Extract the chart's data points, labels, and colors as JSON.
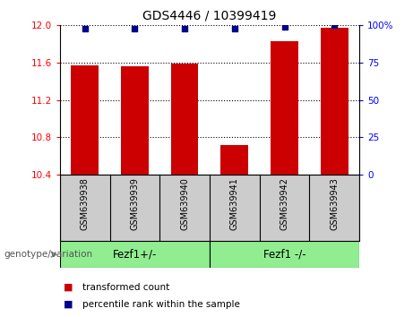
{
  "title": "GDS4446 / 10399419",
  "samples": [
    "GSM639938",
    "GSM639939",
    "GSM639940",
    "GSM639941",
    "GSM639942",
    "GSM639943"
  ],
  "red_values": [
    11.57,
    11.56,
    11.59,
    10.71,
    11.83,
    11.97
  ],
  "blue_values": [
    98,
    98,
    98,
    98,
    99,
    100
  ],
  "ylim_left": [
    10.4,
    12.0
  ],
  "ylim_right": [
    0,
    100
  ],
  "yticks_left": [
    10.4,
    10.8,
    11.2,
    11.6,
    12.0
  ],
  "yticks_right": [
    0,
    25,
    50,
    75,
    100
  ],
  "ytick_labels_right": [
    "0",
    "25",
    "50",
    "75",
    "100%"
  ],
  "groups": [
    {
      "label": "Fezf1+/-",
      "indices": [
        0,
        1,
        2
      ],
      "color": "#90EE90"
    },
    {
      "label": "Fezf1 -/-",
      "indices": [
        3,
        4,
        5
      ],
      "color": "#90EE90"
    }
  ],
  "bar_color": "#cc0000",
  "dot_color": "#00008B",
  "background_color": "#ffffff",
  "plot_bg": "#ffffff",
  "tick_area_bg": "#cccccc",
  "genotype_label": "genotype/variation",
  "legend_items": [
    {
      "color": "#cc0000",
      "label": "transformed count"
    },
    {
      "color": "#00008B",
      "label": "percentile rank within the sample"
    }
  ],
  "bar_width": 0.55
}
